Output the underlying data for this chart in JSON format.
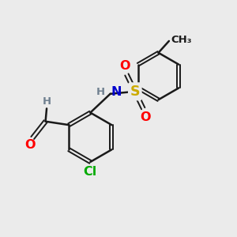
{
  "background_color": "#ebebeb",
  "bond_color": "#1a1a1a",
  "atom_colors": {
    "O": "#ff0000",
    "N": "#0000cd",
    "S": "#ccaa00",
    "Cl": "#00aa00",
    "H": "#708090",
    "C": "#1a1a1a"
  },
  "figsize": [
    3.0,
    3.0
  ],
  "dpi": 100
}
